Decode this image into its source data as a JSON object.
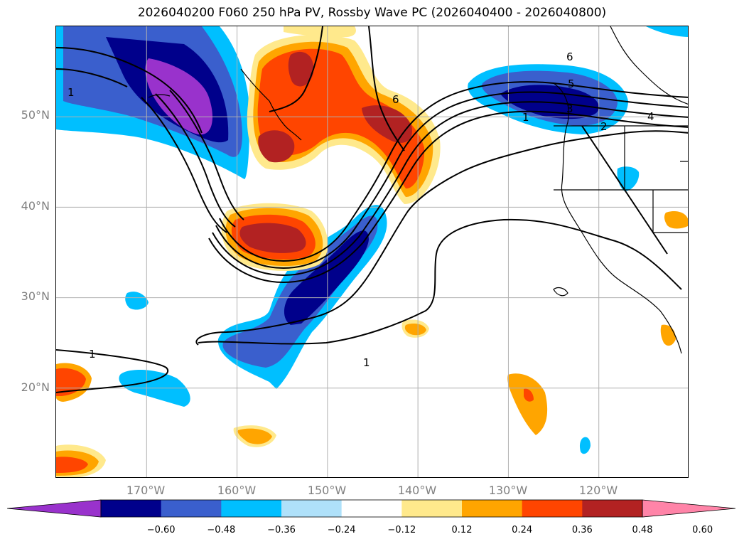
{
  "title": "2026040200 F060 250 hPa PV, Rossby Wave PC (2026040400 - 2026040800)",
  "map": {
    "extent": {
      "lon_min": -180,
      "lon_max": -110,
      "lat_min": 10,
      "lat_max": 60
    },
    "lat_ticks": [
      {
        "lat": 50,
        "label": "50°N"
      },
      {
        "lat": 40,
        "label": "40°N"
      },
      {
        "lat": 30,
        "label": "30°N"
      },
      {
        "lat": 20,
        "label": "20°N"
      }
    ],
    "lon_ticks": [
      {
        "lon": -170,
        "label": "170°W"
      },
      {
        "lon": -160,
        "label": "160°W"
      },
      {
        "lon": -150,
        "label": "150°W"
      },
      {
        "lon": -140,
        "label": "140°W"
      },
      {
        "lon": -130,
        "label": "130°W"
      },
      {
        "lon": -120,
        "label": "120°W"
      }
    ],
    "grid": true,
    "contour_labels": [
      "1",
      "1",
      "1",
      "2",
      "3",
      "4",
      "5",
      "6",
      "6",
      "1"
    ]
  },
  "colorbar": {
    "ticks": [
      "−0.60",
      "−0.48",
      "−0.36",
      "−0.24",
      "−0.12",
      "0.12",
      "0.24",
      "0.36",
      "0.48",
      "0.60"
    ],
    "colors": [
      "#9932cc",
      "#00008b",
      "#3a5fcd",
      "#00bfff",
      "#afe1fa",
      "#ffffff",
      "#ffe98c",
      "#ffa500",
      "#ff4500",
      "#b22222",
      "#ff84a8"
    ]
  }
}
